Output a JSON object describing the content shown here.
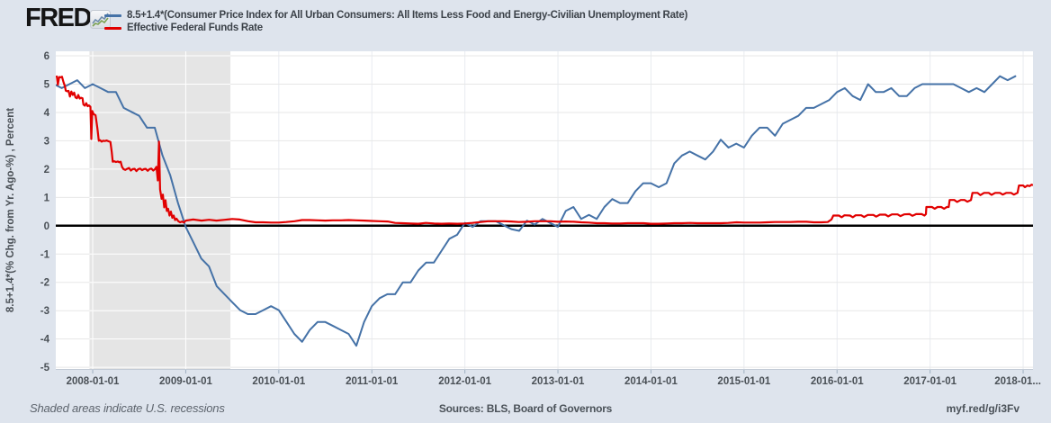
{
  "header": {
    "logo_text": "FRED",
    "legend": [
      {
        "label": "8.5+1.4*(Consumer Price Index for All Urban Consumers: All Items Less Food and Energy-Civilian Unemployment Rate)",
        "color": "#4572a7"
      },
      {
        "label": "Effective Federal Funds Rate",
        "color": "#e10000"
      }
    ]
  },
  "footer": {
    "note": "Shaded areas indicate U.S. recessions",
    "sources": "Sources: BLS, Board of Governors",
    "short_url": "myf.red/g/i3Fv"
  },
  "chart_data": {
    "type": "line",
    "ylabel": "8.5+1.4*(% Chg. from Yr. Ago-%) , Percent",
    "xlim": [
      2007.603,
      2018.106
    ],
    "ylim": [
      -5.06,
      6.16
    ],
    "y_ticks": [
      6,
      5,
      4,
      3,
      2,
      1,
      0,
      -1,
      -2,
      -3,
      -4,
      -5
    ],
    "x_ticks": [
      {
        "t": 2008,
        "label": "2008-01-01"
      },
      {
        "t": 2009,
        "label": "2009-01-01"
      },
      {
        "t": 2010,
        "label": "2010-01-01"
      },
      {
        "t": 2011,
        "label": "2011-01-01"
      },
      {
        "t": 2012,
        "label": "2012-01-01"
      },
      {
        "t": 2013,
        "label": "2013-01-01"
      },
      {
        "t": 2014,
        "label": "2014-01-01"
      },
      {
        "t": 2015,
        "label": "2015-01-01"
      },
      {
        "t": 2016,
        "label": "2016-01-01"
      },
      {
        "t": 2017,
        "label": "2017-01-01"
      },
      {
        "t": 2018,
        "label": "2018-01...",
        "clip": true
      }
    ],
    "zero_line": true,
    "grid": true,
    "legend_position": "top-left",
    "recession_band": {
      "start": 2007.965,
      "end": 2009.48
    },
    "series": [
      {
        "name": "8.5+1.4*(Consumer Price Index for All Urban Consumers: All Items Less Food and Energy-Civilian Unemployment Rate)",
        "color": "#4572a7",
        "frequency": "monthly",
        "start_year": 2007,
        "start_month": 8,
        "values": [
          5.0,
          4.86,
          5.0,
          5.14,
          4.86,
          5.0,
          4.86,
          4.72,
          4.72,
          4.16,
          4.02,
          3.88,
          3.46,
          3.46,
          2.48,
          1.78,
          0.8,
          -0.04,
          -0.6,
          -1.16,
          -1.44,
          -2.14,
          -2.42,
          -2.7,
          -2.98,
          -3.12,
          -3.12,
          -2.98,
          -2.84,
          -2.98,
          -3.4,
          -3.82,
          -4.1,
          -3.68,
          -3.4,
          -3.4,
          -3.54,
          -3.68,
          -3.82,
          -4.24,
          -3.4,
          -2.84,
          -2.56,
          -2.42,
          -2.42,
          -2.0,
          -2.0,
          -1.58,
          -1.3,
          -1.3,
          -0.88,
          -0.46,
          -0.32,
          0.1,
          -0.04,
          0.16,
          0.16,
          0.16,
          0.02,
          -0.12,
          -0.18,
          0.18,
          0.04,
          0.24,
          0.1,
          -0.04,
          0.52,
          0.66,
          0.24,
          0.38,
          0.24,
          0.66,
          0.94,
          0.8,
          0.8,
          1.22,
          1.5,
          1.5,
          1.36,
          1.5,
          2.2,
          2.48,
          2.62,
          2.48,
          2.34,
          2.62,
          3.04,
          2.76,
          2.9,
          2.76,
          3.18,
          3.46,
          3.46,
          3.18,
          3.6,
          3.74,
          3.88,
          4.16,
          4.16,
          4.3,
          4.44,
          4.72,
          4.86,
          4.58,
          4.44,
          5.0,
          4.72,
          4.72,
          4.86,
          4.58,
          4.58,
          4.86,
          5.0,
          5.0,
          5.0,
          5.0,
          5.0,
          4.86,
          4.72,
          4.86,
          4.72,
          5.0,
          5.28,
          5.14,
          5.28
        ]
      },
      {
        "name": "Effective Federal Funds Rate",
        "color": "#e10000",
        "frequency": "daily",
        "points": [
          [
            2007.603,
            5.25
          ],
          [
            2007.615,
            5.27
          ],
          [
            2007.625,
            4.98
          ],
          [
            2007.64,
            5.25
          ],
          [
            2007.655,
            5.24
          ],
          [
            2007.67,
            5.26
          ],
          [
            2007.685,
            5.08
          ],
          [
            2007.7,
            4.94
          ],
          [
            2007.71,
            4.77
          ],
          [
            2007.725,
            4.75
          ],
          [
            2007.74,
            4.76
          ],
          [
            2007.755,
            4.56
          ],
          [
            2007.77,
            4.74
          ],
          [
            2007.785,
            4.62
          ],
          [
            2007.8,
            4.7
          ],
          [
            2007.815,
            4.53
          ],
          [
            2007.83,
            4.5
          ],
          [
            2007.845,
            4.62
          ],
          [
            2007.86,
            4.49
          ],
          [
            2007.875,
            4.52
          ],
          [
            2007.89,
            4.5
          ],
          [
            2007.9,
            4.28
          ],
          [
            2007.915,
            4.24
          ],
          [
            2007.93,
            4.33
          ],
          [
            2007.945,
            4.22
          ],
          [
            2007.96,
            4.25
          ],
          [
            2007.975,
            4.2
          ],
          [
            2007.985,
            3.06
          ],
          [
            2007.995,
            4.05
          ],
          [
            2008.01,
            3.94
          ],
          [
            2008.03,
            3.9
          ],
          [
            2008.05,
            3.45
          ],
          [
            2008.065,
            3.0
          ],
          [
            2008.08,
            3.02
          ],
          [
            2008.095,
            2.97
          ],
          [
            2008.11,
            3.0
          ],
          [
            2008.13,
            2.99
          ],
          [
            2008.15,
            3.01
          ],
          [
            2008.17,
            2.98
          ],
          [
            2008.19,
            2.96
          ],
          [
            2008.205,
            2.6
          ],
          [
            2008.215,
            2.26
          ],
          [
            2008.23,
            2.28
          ],
          [
            2008.25,
            2.25
          ],
          [
            2008.27,
            2.27
          ],
          [
            2008.285,
            2.24
          ],
          [
            2008.3,
            2.26
          ],
          [
            2008.315,
            2.08
          ],
          [
            2008.33,
            2.0
          ],
          [
            2008.35,
            1.97
          ],
          [
            2008.37,
            2.01
          ],
          [
            2008.39,
            2.04
          ],
          [
            2008.41,
            1.95
          ],
          [
            2008.43,
            2.0
          ],
          [
            2008.45,
            2.01
          ],
          [
            2008.47,
            1.93
          ],
          [
            2008.49,
            2.0
          ],
          [
            2008.51,
            2.02
          ],
          [
            2008.53,
            1.96
          ],
          [
            2008.55,
            2.0
          ],
          [
            2008.57,
            2.01
          ],
          [
            2008.59,
            1.94
          ],
          [
            2008.61,
            2.0
          ],
          [
            2008.63,
            2.02
          ],
          [
            2008.65,
            1.95
          ],
          [
            2008.67,
            2.0
          ],
          [
            2008.685,
            2.08
          ],
          [
            2008.7,
            1.6
          ],
          [
            2008.712,
            2.97
          ],
          [
            2008.724,
            1.28
          ],
          [
            2008.74,
            0.95
          ],
          [
            2008.754,
            1.1
          ],
          [
            2008.768,
            0.65
          ],
          [
            2008.782,
            0.9
          ],
          [
            2008.796,
            0.52
          ],
          [
            2008.81,
            0.6
          ],
          [
            2008.825,
            0.36
          ],
          [
            2008.84,
            0.5
          ],
          [
            2008.855,
            0.28
          ],
          [
            2008.87,
            0.36
          ],
          [
            2008.885,
            0.2
          ],
          [
            2008.9,
            0.25
          ],
          [
            2008.92,
            0.16
          ],
          [
            2008.94,
            0.12
          ],
          [
            2008.96,
            0.15
          ],
          [
            2008.98,
            0.11
          ],
          [
            2009.0,
            0.18
          ],
          [
            2009.08,
            0.22
          ],
          [
            2009.17,
            0.18
          ],
          [
            2009.25,
            0.21
          ],
          [
            2009.33,
            0.18
          ],
          [
            2009.42,
            0.21
          ],
          [
            2009.5,
            0.24
          ],
          [
            2009.58,
            0.22
          ],
          [
            2009.67,
            0.16
          ],
          [
            2009.75,
            0.12
          ],
          [
            2009.83,
            0.12
          ],
          [
            2009.92,
            0.11
          ],
          [
            2010.0,
            0.11
          ],
          [
            2010.08,
            0.13
          ],
          [
            2010.17,
            0.16
          ],
          [
            2010.25,
            0.2
          ],
          [
            2010.33,
            0.2
          ],
          [
            2010.42,
            0.19
          ],
          [
            2010.5,
            0.18
          ],
          [
            2010.58,
            0.19
          ],
          [
            2010.67,
            0.19
          ],
          [
            2010.75,
            0.2
          ],
          [
            2010.83,
            0.19
          ],
          [
            2010.92,
            0.18
          ],
          [
            2011.0,
            0.17
          ],
          [
            2011.08,
            0.16
          ],
          [
            2011.17,
            0.15
          ],
          [
            2011.25,
            0.1
          ],
          [
            2011.33,
            0.09
          ],
          [
            2011.42,
            0.08
          ],
          [
            2011.5,
            0.07
          ],
          [
            2011.58,
            0.1
          ],
          [
            2011.67,
            0.08
          ],
          [
            2011.75,
            0.07
          ],
          [
            2011.83,
            0.08
          ],
          [
            2011.92,
            0.07
          ],
          [
            2012.0,
            0.08
          ],
          [
            2012.08,
            0.1
          ],
          [
            2012.17,
            0.13
          ],
          [
            2012.25,
            0.16
          ],
          [
            2012.33,
            0.16
          ],
          [
            2012.42,
            0.16
          ],
          [
            2012.5,
            0.15
          ],
          [
            2012.58,
            0.13
          ],
          [
            2012.67,
            0.14
          ],
          [
            2012.75,
            0.16
          ],
          [
            2012.83,
            0.16
          ],
          [
            2012.92,
            0.16
          ],
          [
            2013.0,
            0.14
          ],
          [
            2013.08,
            0.15
          ],
          [
            2013.17,
            0.14
          ],
          [
            2013.25,
            0.12
          ],
          [
            2013.33,
            0.11
          ],
          [
            2013.42,
            0.09
          ],
          [
            2013.5,
            0.09
          ],
          [
            2013.58,
            0.08
          ],
          [
            2013.67,
            0.08
          ],
          [
            2013.75,
            0.09
          ],
          [
            2013.83,
            0.09
          ],
          [
            2013.92,
            0.09
          ],
          [
            2014.0,
            0.07
          ],
          [
            2014.08,
            0.07
          ],
          [
            2014.17,
            0.08
          ],
          [
            2014.25,
            0.09
          ],
          [
            2014.33,
            0.09
          ],
          [
            2014.42,
            0.1
          ],
          [
            2014.5,
            0.09
          ],
          [
            2014.58,
            0.09
          ],
          [
            2014.67,
            0.09
          ],
          [
            2014.75,
            0.09
          ],
          [
            2014.83,
            0.1
          ],
          [
            2014.92,
            0.12
          ],
          [
            2015.0,
            0.11
          ],
          [
            2015.08,
            0.11
          ],
          [
            2015.17,
            0.11
          ],
          [
            2015.25,
            0.12
          ],
          [
            2015.33,
            0.13
          ],
          [
            2015.42,
            0.13
          ],
          [
            2015.5,
            0.13
          ],
          [
            2015.58,
            0.14
          ],
          [
            2015.67,
            0.14
          ],
          [
            2015.75,
            0.12
          ],
          [
            2015.83,
            0.12
          ],
          [
            2015.9,
            0.13
          ],
          [
            2015.94,
            0.22
          ],
          [
            2015.96,
            0.36
          ],
          [
            2016.02,
            0.36
          ],
          [
            2016.05,
            0.3
          ],
          [
            2016.08,
            0.37
          ],
          [
            2016.14,
            0.36
          ],
          [
            2016.17,
            0.3
          ],
          [
            2016.2,
            0.37
          ],
          [
            2016.26,
            0.37
          ],
          [
            2016.29,
            0.31
          ],
          [
            2016.33,
            0.38
          ],
          [
            2016.39,
            0.38
          ],
          [
            2016.42,
            0.32
          ],
          [
            2016.46,
            0.39
          ],
          [
            2016.52,
            0.39
          ],
          [
            2016.55,
            0.33
          ],
          [
            2016.59,
            0.4
          ],
          [
            2016.65,
            0.4
          ],
          [
            2016.68,
            0.34
          ],
          [
            2016.72,
            0.4
          ],
          [
            2016.78,
            0.41
          ],
          [
            2016.81,
            0.35
          ],
          [
            2016.85,
            0.41
          ],
          [
            2016.91,
            0.41
          ],
          [
            2016.94,
            0.36
          ],
          [
            2016.955,
            0.41
          ],
          [
            2016.96,
            0.66
          ],
          [
            2017.02,
            0.66
          ],
          [
            2017.05,
            0.6
          ],
          [
            2017.08,
            0.66
          ],
          [
            2017.12,
            0.66
          ],
          [
            2017.15,
            0.6
          ],
          [
            2017.18,
            0.66
          ],
          [
            2017.2,
            0.66
          ],
          [
            2017.21,
            0.91
          ],
          [
            2017.26,
            0.91
          ],
          [
            2017.29,
            0.84
          ],
          [
            2017.33,
            0.91
          ],
          [
            2017.37,
            0.91
          ],
          [
            2017.4,
            0.85
          ],
          [
            2017.44,
            0.91
          ],
          [
            2017.455,
            1.16
          ],
          [
            2017.51,
            1.16
          ],
          [
            2017.54,
            1.08
          ],
          [
            2017.58,
            1.16
          ],
          [
            2017.63,
            1.16
          ],
          [
            2017.66,
            1.09
          ],
          [
            2017.7,
            1.16
          ],
          [
            2017.75,
            1.16
          ],
          [
            2017.78,
            1.1
          ],
          [
            2017.82,
            1.16
          ],
          [
            2017.87,
            1.16
          ],
          [
            2017.9,
            1.1
          ],
          [
            2017.94,
            1.16
          ],
          [
            2017.955,
            1.42
          ],
          [
            2018.0,
            1.42
          ],
          [
            2018.02,
            1.36
          ],
          [
            2018.045,
            1.42
          ],
          [
            2018.07,
            1.4
          ],
          [
            2018.09,
            1.45
          ],
          [
            2018.105,
            1.43
          ]
        ]
      }
    ]
  }
}
